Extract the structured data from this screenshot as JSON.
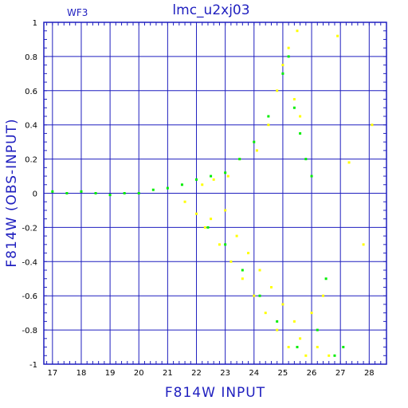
{
  "chart_data": {
    "type": "scatter",
    "title": "lmc_u2xj03",
    "chip_label": "WF3",
    "xlabel": "F814W  INPUT",
    "ylabel": "F814W (OBS-INPUT)",
    "xlim": [
      16.7,
      28.6
    ],
    "ylim": [
      -1,
      1
    ],
    "xticks": [
      17,
      18,
      19,
      20,
      21,
      22,
      23,
      24,
      25,
      26,
      27,
      28
    ],
    "yticks": [
      -1,
      -0.8,
      -0.6,
      -0.4,
      -0.2,
      0,
      0.2,
      0.4,
      0.6,
      0.8,
      1
    ],
    "ytick_labels": [
      "-1",
      "-0.8",
      "-0.6",
      "-0.4",
      "-0.2",
      "0",
      "0.2",
      "0.4",
      "0.6",
      "0.8",
      "1"
    ],
    "grid": true,
    "colors": {
      "axis": "#1f1fbf",
      "grid": "#1f1fbf",
      "text": "#1f1fbf"
    },
    "series": [
      {
        "color": "#ffff00",
        "points": [
          [
            21.6,
            -0.05
          ],
          [
            22.0,
            -0.12
          ],
          [
            22.3,
            -0.2
          ],
          [
            22.5,
            -0.15
          ],
          [
            22.8,
            -0.3
          ],
          [
            23.0,
            -0.1
          ],
          [
            23.2,
            -0.4
          ],
          [
            23.4,
            -0.25
          ],
          [
            23.6,
            -0.5
          ],
          [
            23.8,
            -0.35
          ],
          [
            24.0,
            -0.6
          ],
          [
            24.2,
            -0.45
          ],
          [
            24.4,
            -0.7
          ],
          [
            24.6,
            -0.55
          ],
          [
            24.8,
            -0.8
          ],
          [
            25.0,
            -0.65
          ],
          [
            25.2,
            -0.9
          ],
          [
            25.4,
            -0.75
          ],
          [
            25.6,
            -0.85
          ],
          [
            25.8,
            -0.95
          ],
          [
            26.0,
            -0.7
          ],
          [
            26.2,
            -0.9
          ],
          [
            26.4,
            -0.6
          ],
          [
            26.6,
            -0.95
          ],
          [
            22.2,
            0.05
          ],
          [
            22.6,
            0.08
          ],
          [
            23.1,
            0.1
          ],
          [
            23.5,
            0.2
          ],
          [
            24.1,
            0.25
          ],
          [
            24.5,
            0.4
          ],
          [
            24.8,
            0.6
          ],
          [
            25.0,
            0.75
          ],
          [
            25.2,
            0.85
          ],
          [
            25.4,
            0.55
          ],
          [
            25.6,
            0.45
          ],
          [
            27.3,
            0.18
          ],
          [
            27.8,
            -0.3
          ],
          [
            28.1,
            0.4
          ],
          [
            26.9,
            0.92
          ],
          [
            25.5,
            0.95
          ]
        ]
      },
      {
        "color": "#00ee00",
        "points": [
          [
            17.0,
            0.01
          ],
          [
            17.5,
            0.0
          ],
          [
            18.0,
            0.01
          ],
          [
            18.5,
            0.0
          ],
          [
            19.0,
            -0.01
          ],
          [
            19.5,
            0.0
          ],
          [
            20.0,
            0.0
          ],
          [
            20.5,
            0.02
          ],
          [
            21.0,
            0.03
          ],
          [
            21.5,
            0.05
          ],
          [
            22.0,
            0.08
          ],
          [
            22.5,
            0.1
          ],
          [
            23.0,
            0.12
          ],
          [
            23.5,
            0.2
          ],
          [
            24.0,
            0.3
          ],
          [
            24.5,
            0.45
          ],
          [
            25.0,
            0.7
          ],
          [
            25.2,
            0.8
          ],
          [
            25.4,
            0.5
          ],
          [
            25.6,
            0.35
          ],
          [
            26.0,
            0.1
          ],
          [
            24.2,
            -0.6
          ],
          [
            24.8,
            -0.75
          ],
          [
            25.5,
            -0.9
          ],
          [
            26.2,
            -0.8
          ],
          [
            26.8,
            -0.95
          ],
          [
            23.0,
            -0.3
          ],
          [
            23.6,
            -0.45
          ],
          [
            22.4,
            -0.2
          ],
          [
            26.5,
            -0.5
          ],
          [
            27.1,
            -0.9
          ],
          [
            25.8,
            0.2
          ]
        ]
      }
    ]
  }
}
